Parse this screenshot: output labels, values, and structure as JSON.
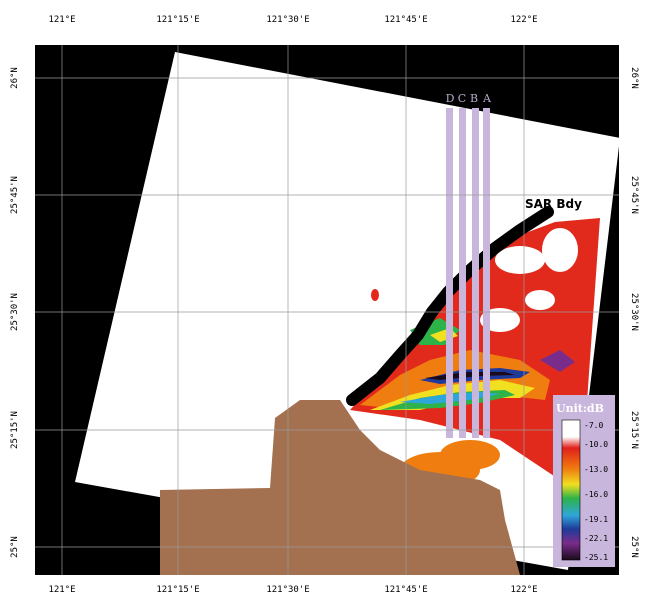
{
  "map": {
    "longitudes": [
      "121°E",
      "121°15'E",
      "121°30'E",
      "121°45'E",
      "122°E"
    ],
    "latitudes": [
      "26°N",
      "25°45'N",
      "25°30'N",
      "25°15'N",
      "25°N"
    ],
    "transects": [
      "D",
      "C",
      "B",
      "A"
    ],
    "boundary_label": "SAR Bdy",
    "colorbar": {
      "unit": "Unit:dB",
      "ticks": [
        "-7.0",
        "-10.0",
        "-13.0",
        "-16.0",
        "-19.1",
        "-22.1",
        "-25.1"
      ]
    },
    "colors": {
      "frame": "#000000",
      "swath": "#ffffff",
      "land": "#a47150",
      "transect": "#c9b6dc",
      "boundary": "#000000"
    }
  }
}
